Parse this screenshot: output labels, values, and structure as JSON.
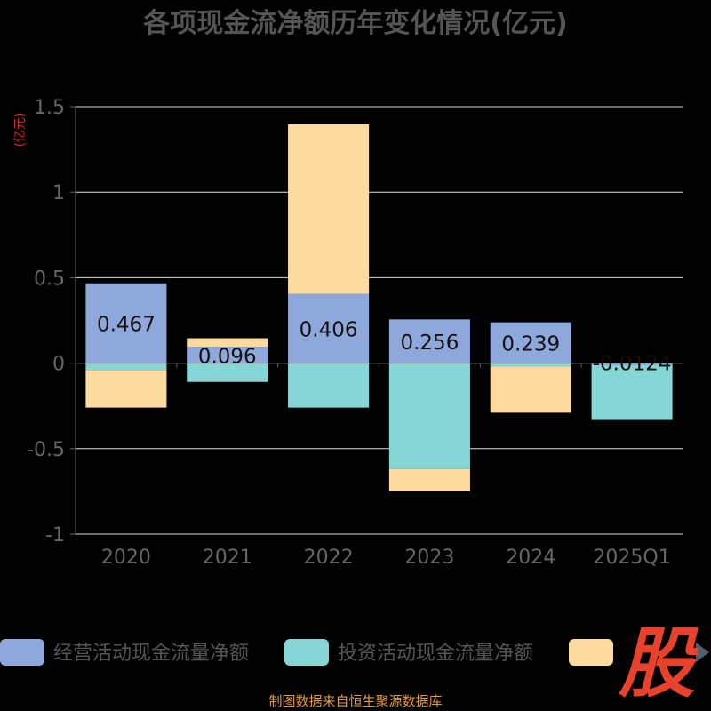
{
  "chart_data": {
    "type": "bar",
    "stacked": true,
    "title": "各项现金流净额历年变化情况(亿元)",
    "ylabel": "(亿元)",
    "xlabel": "",
    "categories": [
      "2020",
      "2021",
      "2022",
      "2023",
      "2024",
      "2025Q1"
    ],
    "ylim": [
      -1,
      1.5
    ],
    "yticks": [
      "1.5",
      "1",
      "0.5",
      "0",
      "-0.5",
      "-1"
    ],
    "grid": true,
    "legend_position": "bottom",
    "series": [
      {
        "name": "经营活动现金流量净额",
        "color": "#8fa8dc",
        "values": [
          0.467,
          0.096,
          0.406,
          0.256,
          0.239,
          -0.0124
        ],
        "labels": [
          "0.467",
          "0.096",
          "0.406",
          "0.256",
          "0.239",
          "-0.0124"
        ]
      },
      {
        "name": "投资活动现金流量净额",
        "color": "#86d6d6",
        "values": [
          -0.04,
          -0.11,
          -0.26,
          -0.62,
          -0.02,
          -0.32
        ],
        "labels": null
      },
      {
        "name": "",
        "color": "#fddb9f",
        "values": [
          -0.22,
          0.05,
          0.99,
          -0.13,
          -0.27,
          0
        ],
        "labels": null
      }
    ]
  },
  "footer_text": "制图数据来自恒生聚源数据库",
  "logo_text": "股",
  "colors": {
    "background": "#000000",
    "axis_text": "#666666",
    "ylabel": "#d9261c",
    "logo": "#e8412c",
    "footer": "#e39b3c"
  }
}
